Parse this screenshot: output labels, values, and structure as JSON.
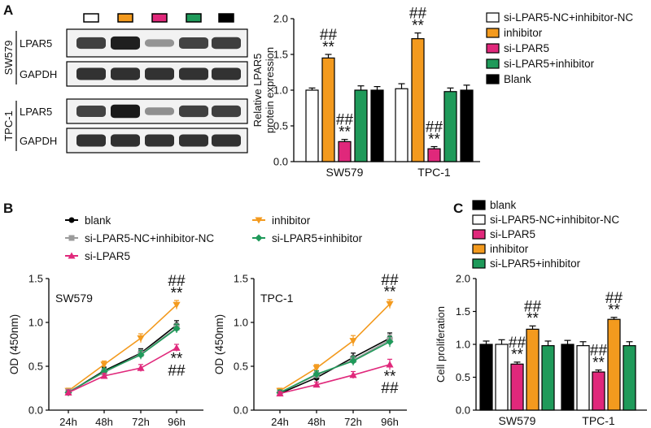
{
  "panels": {
    "A": {
      "letter": "A",
      "blot": {
        "swatch_colors": [
          "#ffffff",
          "#f39a1e",
          "#e0287b",
          "#1f9a5a",
          "#000000"
        ],
        "groups": [
          {
            "cell_line": "SW579",
            "bands": [
              {
                "label": "LPAR5",
                "intensity": [
                  0.72,
                  0.92,
                  0.22,
                  0.7,
                  0.74
                ]
              },
              {
                "label": "GAPDH",
                "intensity": [
                  0.8,
                  0.82,
                  0.8,
                  0.8,
                  0.8
                ]
              }
            ]
          },
          {
            "cell_line": "TPC-1",
            "bands": [
              {
                "label": "LPAR5",
                "intensity": [
                  0.7,
                  0.95,
                  0.25,
                  0.72,
                  0.72
                ]
              },
              {
                "label": "GAPDH",
                "intensity": [
                  0.8,
                  0.82,
                  0.8,
                  0.8,
                  0.8
                ]
              }
            ]
          }
        ]
      }
    },
    "B": {
      "letter": "B"
    },
    "C": {
      "letter": "C"
    }
  },
  "chart_data": [
    {
      "panel": "A",
      "type": "bar",
      "title": "",
      "xlabel": "",
      "ylabel": "Relative LPAR5 protein expression",
      "ylim": [
        0,
        2.0
      ],
      "yticks": [
        "0.0",
        "0.5",
        "1.0",
        "1.5",
        "2.0"
      ],
      "categories": [
        "SW579",
        "TPC-1"
      ],
      "legend_position": "right",
      "series": [
        {
          "name": "si-LPAR5-NC+inhibitor-NC",
          "color": "#ffffff",
          "values": [
            1.0,
            1.02
          ],
          "errors": [
            0.03,
            0.07
          ],
          "marks": [
            "",
            ""
          ]
        },
        {
          "name": "inhibitor",
          "color": "#f39a1e",
          "values": [
            1.45,
            1.72
          ],
          "errors": [
            0.05,
            0.08
          ],
          "marks": [
            "##\n**",
            "##\n**"
          ]
        },
        {
          "name": "si-LPAR5",
          "color": "#e0287b",
          "values": [
            0.28,
            0.18
          ],
          "errors": [
            0.03,
            0.03
          ],
          "marks": [
            "##\n**",
            "##\n**"
          ]
        },
        {
          "name": "si-LPAR5+inhibitor",
          "color": "#1f9a5a",
          "values": [
            1.0,
            0.98
          ],
          "errors": [
            0.06,
            0.05
          ],
          "marks": [
            "",
            ""
          ]
        },
        {
          "name": "Blank",
          "color": "#000000",
          "values": [
            1.0,
            1.0
          ],
          "errors": [
            0.05,
            0.07
          ],
          "marks": [
            "",
            ""
          ]
        }
      ]
    },
    {
      "panel": "B",
      "type": "line",
      "legend_position": "top",
      "legend": [
        {
          "name": "blank",
          "color": "#000000",
          "marker": "circle"
        },
        {
          "name": "inhibitor",
          "color": "#f39a1e",
          "marker": "triangle-down"
        },
        {
          "name": "si-LPAR5-NC+inhibitor-NC",
          "color": "#9b9b9b",
          "marker": "square"
        },
        {
          "name": "si-LPAR5+inhibitor",
          "color": "#1f9a5a",
          "marker": "diamond"
        },
        {
          "name": "si-LPAR5",
          "color": "#e0287b",
          "marker": "triangle-up"
        }
      ],
      "charts": [
        {
          "title": "SW579",
          "ylabel": "OD (450nm)",
          "xlabel": "",
          "x": [
            "24h",
            "48h",
            "72h",
            "96h"
          ],
          "ylim": [
            0,
            1.5
          ],
          "yticks": [
            "0.0",
            "0.5",
            "1.0",
            "1.5"
          ],
          "series": [
            {
              "name": "blank",
              "values": [
                0.2,
                0.45,
                0.65,
                0.97
              ],
              "errors": [
                0.03,
                0.04,
                0.05,
                0.05
              ]
            },
            {
              "name": "inhibitor",
              "values": [
                0.22,
                0.52,
                0.82,
                1.2
              ],
              "errors": [
                0.03,
                0.04,
                0.05,
                0.05
              ]
            },
            {
              "name": "si-LPAR5-NC+inhibitor-NC",
              "values": [
                0.21,
                0.43,
                0.64,
                0.94
              ],
              "errors": [
                0.03,
                0.04,
                0.05,
                0.05
              ]
            },
            {
              "name": "si-LPAR5+inhibitor",
              "values": [
                0.2,
                0.44,
                0.63,
                0.93
              ],
              "errors": [
                0.03,
                0.04,
                0.05,
                0.05
              ]
            },
            {
              "name": "si-LPAR5",
              "values": [
                0.2,
                0.39,
                0.48,
                0.71
              ],
              "errors": [
                0.03,
                0.03,
                0.04,
                0.04
              ]
            }
          ],
          "annotations": [
            {
              "x": "96h",
              "text": "##\n**",
              "position": "above",
              "anchor_value": 1.25
            },
            {
              "x": "96h",
              "text": "**\n##",
              "position": "below",
              "anchor_value": 0.66
            }
          ]
        },
        {
          "title": "TPC-1",
          "ylabel": "OD (450nm)",
          "xlabel": "",
          "x": [
            "24h",
            "48h",
            "72h",
            "96h"
          ],
          "ylim": [
            0,
            1.5
          ],
          "yticks": [
            "0.0",
            "0.5",
            "1.0",
            "1.5"
          ],
          "series": [
            {
              "name": "blank",
              "values": [
                0.19,
                0.37,
                0.6,
                0.82
              ],
              "errors": [
                0.03,
                0.05,
                0.05,
                0.06
              ]
            },
            {
              "name": "inhibitor",
              "values": [
                0.22,
                0.48,
                0.79,
                1.21
              ],
              "errors": [
                0.03,
                0.04,
                0.06,
                0.05
              ]
            },
            {
              "name": "si-LPAR5-NC+inhibitor-NC",
              "values": [
                0.2,
                0.4,
                0.57,
                0.8
              ],
              "errors": [
                0.03,
                0.04,
                0.05,
                0.06
              ]
            },
            {
              "name": "si-LPAR5+inhibitor",
              "values": [
                0.2,
                0.41,
                0.56,
                0.78
              ],
              "errors": [
                0.03,
                0.04,
                0.05,
                0.06
              ]
            },
            {
              "name": "si-LPAR5",
              "values": [
                0.19,
                0.29,
                0.4,
                0.52
              ],
              "errors": [
                0.02,
                0.03,
                0.04,
                0.06
              ]
            }
          ],
          "annotations": [
            {
              "x": "96h",
              "text": "##\n**",
              "position": "above",
              "anchor_value": 1.26
            },
            {
              "x": "96h",
              "text": "**\n##",
              "position": "below",
              "anchor_value": 0.46
            }
          ]
        }
      ]
    },
    {
      "panel": "C",
      "type": "bar",
      "title": "",
      "xlabel": "",
      "ylabel": "Cell proliferation",
      "ylim": [
        0,
        2.0
      ],
      "yticks": [
        "0.0",
        "0.5",
        "1.0",
        "1.5",
        "2.0"
      ],
      "categories": [
        "SW579",
        "TPC-1"
      ],
      "legend_position": "top",
      "series": [
        {
          "name": "blank",
          "color": "#000000",
          "values": [
            1.0,
            1.0
          ],
          "errors": [
            0.05,
            0.06
          ],
          "marks": [
            "",
            ""
          ]
        },
        {
          "name": "si-LPAR5-NC+inhibitor-NC",
          "color": "#ffffff",
          "values": [
            1.0,
            0.98
          ],
          "errors": [
            0.07,
            0.06
          ],
          "marks": [
            "",
            ""
          ]
        },
        {
          "name": "si-LPAR5",
          "color": "#e0287b",
          "values": [
            0.7,
            0.58
          ],
          "errors": [
            0.03,
            0.03
          ],
          "marks": [
            "##\n**",
            "##\n**"
          ]
        },
        {
          "name": "inhibitor",
          "color": "#f39a1e",
          "values": [
            1.23,
            1.38
          ],
          "errors": [
            0.05,
            0.03
          ],
          "marks": [
            "##\n**",
            "##\n**"
          ]
        },
        {
          "name": "si-LPAR5+inhibitor",
          "color": "#1f9a5a",
          "values": [
            0.98,
            0.98
          ],
          "errors": [
            0.07,
            0.06
          ],
          "marks": [
            "",
            ""
          ]
        }
      ]
    }
  ]
}
